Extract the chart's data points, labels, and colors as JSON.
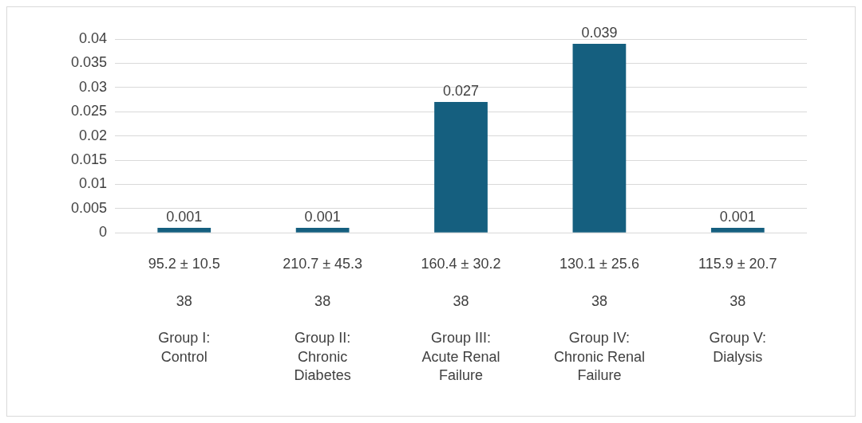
{
  "chart_data": {
    "type": "bar",
    "categories": [
      "95.2 ± 10.5\n38\nGroup I: Control",
      "210.7 ± 45.3\n38\nGroup II: Chronic Diabetes",
      "160.4 ± 30.2\n38\nGroup III: Acute Renal Failure",
      "130.1 ± 25.6\n38\nGroup IV: Chronic Renal Failure",
      "115.9 ± 20.7\n38\nGroup V: Dialysis"
    ],
    "values": [
      0.001,
      0.001,
      0.027,
      0.039,
      0.001
    ],
    "color": "#155f7f",
    "ylim": [
      0,
      0.04
    ],
    "yticks": [
      0,
      0.005,
      0.01,
      0.015,
      0.02,
      0.025,
      0.03,
      0.035,
      0.04
    ],
    "grid": "y",
    "data_labels": true
  }
}
